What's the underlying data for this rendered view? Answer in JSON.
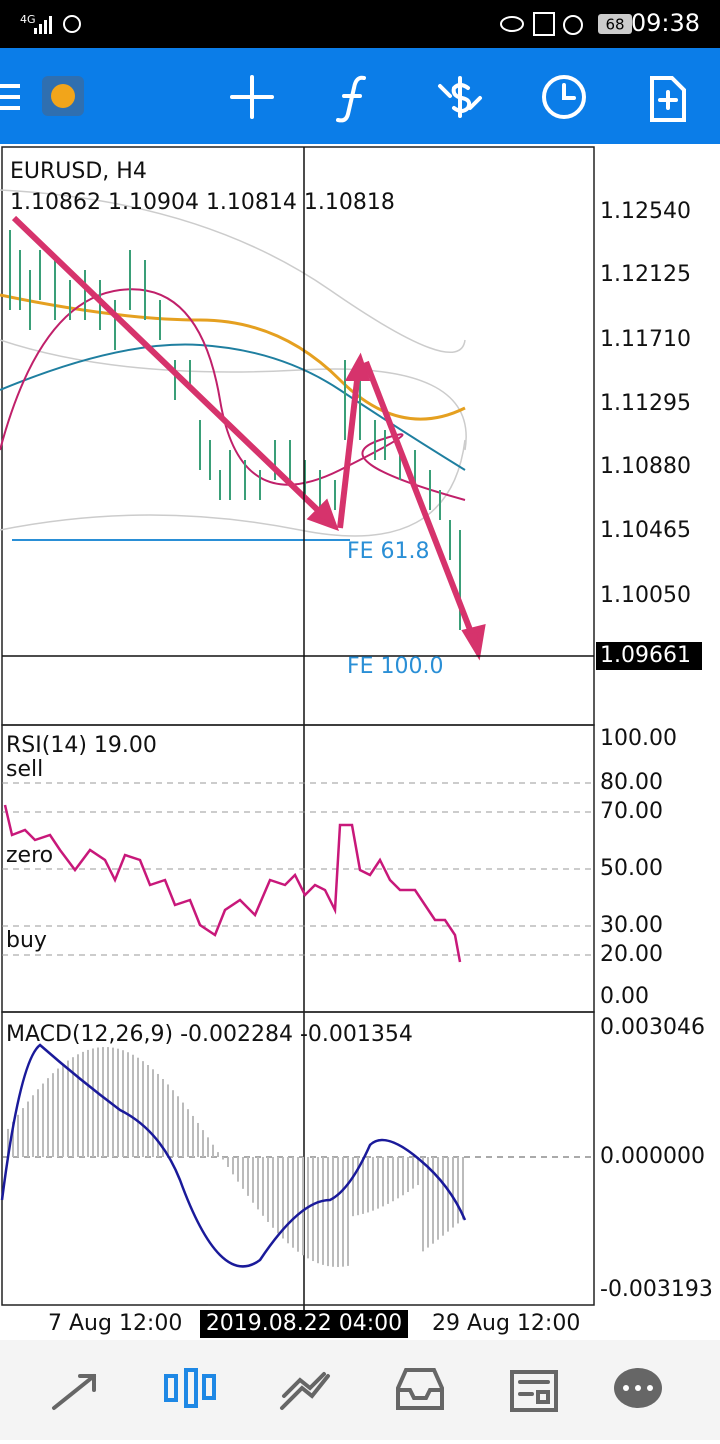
{
  "status_bar": {
    "network": "4G",
    "battery": "68",
    "time": "09:38"
  },
  "price_panel": {
    "symbol": "EURUSD, H4",
    "ohlc": "1.10862 1.10904 1.10814 1.10818",
    "axis": [
      "1.12540",
      "1.12125",
      "1.11710",
      "1.11295",
      "1.10880",
      "1.10465",
      "1.10050"
    ],
    "current_price": "1.09661",
    "annotations": [
      "FE 61.8",
      "FE 100.0"
    ]
  },
  "rsi_panel": {
    "title": "RSI(14) 19.00",
    "levels": [
      "sell",
      "zero",
      "buy"
    ],
    "axis": [
      "100.00",
      "80.00",
      "70.00",
      "50.00",
      "30.00",
      "20.00",
      "0.00"
    ]
  },
  "macd_panel": {
    "title": "MACD(12,26,9) -0.002284 -0.001354",
    "axis": [
      "0.003046",
      "0.000000",
      "-0.003193"
    ]
  },
  "time_axis": {
    "labels": [
      "7 Aug 12:00",
      "29 Aug 12:00"
    ],
    "cursor": "2019.08.22 04:00"
  }
}
